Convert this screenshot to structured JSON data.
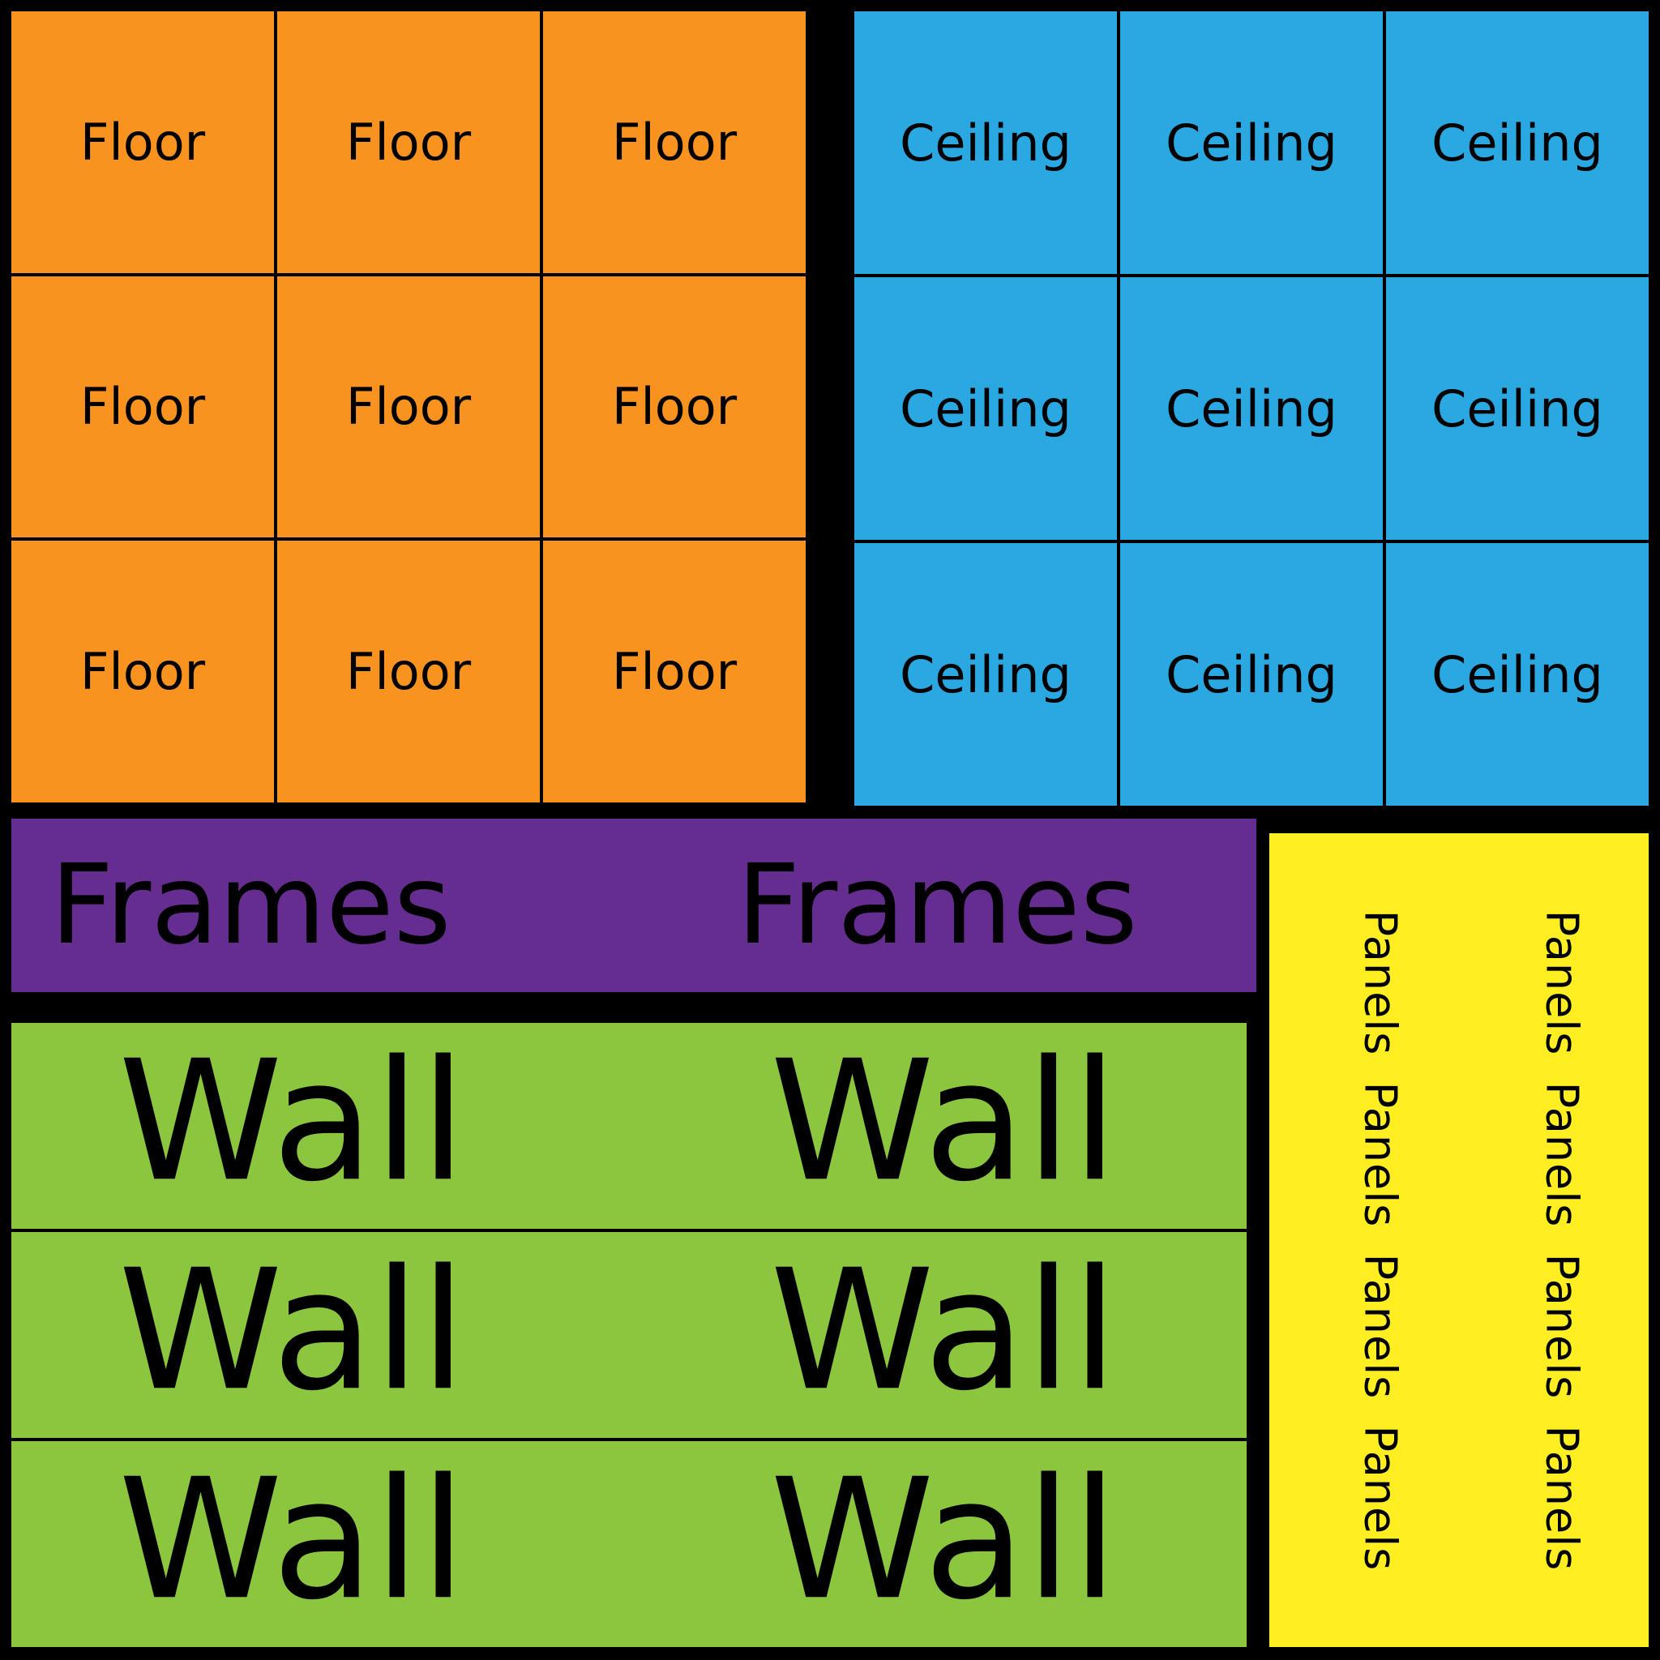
{
  "floor": {
    "color": "#F7931E",
    "cells": [
      "Floor",
      "Floor",
      "Floor",
      "Floor",
      "Floor",
      "Floor",
      "Floor",
      "Floor",
      "Floor"
    ]
  },
  "ceiling": {
    "color": "#29A8E1",
    "cells": [
      "Ceiling",
      "Ceiling",
      "Ceiling",
      "Ceiling",
      "Ceiling",
      "Ceiling",
      "Ceiling",
      "Ceiling",
      "Ceiling"
    ]
  },
  "frames": {
    "color": "#662D91",
    "labels": [
      "Frames",
      "Frames"
    ]
  },
  "wall": {
    "color": "#8CC63F",
    "rows": [
      [
        "Wall",
        "Wall"
      ],
      [
        "Wall",
        "Wall"
      ],
      [
        "Wall",
        "Wall"
      ]
    ]
  },
  "panels": {
    "color": "#FFEE22",
    "columns": [
      "Panels Panels Panels Panels",
      "Panels Panels Panels Panels"
    ]
  }
}
